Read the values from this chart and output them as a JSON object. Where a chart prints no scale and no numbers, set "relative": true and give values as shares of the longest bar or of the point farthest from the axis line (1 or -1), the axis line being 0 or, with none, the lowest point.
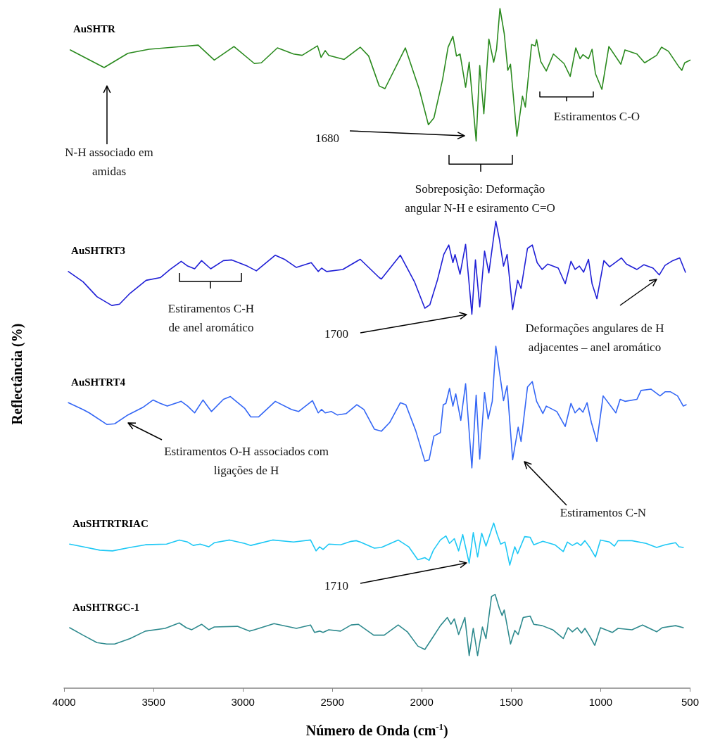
{
  "chart_data": {
    "type": "line",
    "relative": true,
    "xlabel": "Número de Onda (cm$^{-1}$)",
    "ylabel": "Reflectância (%)",
    "xlim": [
      4000,
      500
    ],
    "xticks": [
      4000,
      3500,
      3000,
      2500,
      2000,
      1500,
      1000,
      500
    ],
    "grid": false,
    "tick_labels": "x",
    "line_style": "solid",
    "series": [
      {
        "name": "AuSHTR",
        "color": "#2a8a1e",
        "x": [
          3965,
          3776,
          3643,
          3525,
          3250,
          3160,
          3050,
          2936,
          2897,
          2807,
          2717,
          2669,
          2583,
          2563,
          2540,
          2520,
          2434,
          2344,
          2297,
          2238,
          2206,
          2092,
          2014,
          1963,
          1932,
          1884,
          1853,
          1826,
          1806,
          1786,
          1755,
          1735,
          1696,
          1676,
          1653,
          1625,
          1598,
          1582,
          1563,
          1539,
          1519,
          1504,
          1468,
          1437,
          1421,
          1386,
          1366,
          1358,
          1335,
          1304,
          1264,
          1205,
          1170,
          1139,
          1115,
          1099,
          1068,
          1048,
          1029,
          993,
          954,
          887,
          864,
          797,
          754,
          687,
          660,
          621,
          562,
          546,
          530,
          500
        ],
        "values": [
          0.939,
          0.913,
          0.934,
          0.94,
          0.946,
          0.924,
          0.944,
          0.919,
          0.92,
          0.942,
          0.933,
          0.931,
          0.945,
          0.928,
          0.938,
          0.931,
          0.925,
          0.943,
          0.93,
          0.886,
          0.882,
          0.942,
          0.881,
          0.829,
          0.839,
          0.895,
          0.943,
          0.959,
          0.93,
          0.933,
          0.884,
          0.921,
          0.805,
          0.916,
          0.845,
          0.955,
          0.921,
          0.94,
          1,
          0.963,
          0.909,
          0.918,
          0.812,
          0.871,
          0.855,
          0.947,
          0.945,
          0.954,
          0.922,
          0.908,
          0.933,
          0.919,
          0.9,
          0.942,
          0.926,
          0.932,
          0.926,
          0.94,
          0.904,
          0.881,
          0.944,
          0.918,
          0.939,
          0.933,
          0.92,
          0.931,
          0.943,
          0.937,
          0.914,
          0.909,
          0.92,
          0.924
        ]
      },
      {
        "name": "AuSHTRT3",
        "color": "#1f1fd6",
        "x": [
          3976,
          3894,
          3816,
          3733,
          3690,
          3631,
          3541,
          3462,
          3407,
          3345,
          3309,
          3270,
          3231,
          3180,
          3109,
          3062,
          2976,
          2925,
          2819,
          2768,
          2701,
          2618,
          2579,
          2560,
          2532,
          2442,
          2344,
          2238,
          2226,
          2120,
          2041,
          1983,
          1955,
          1912,
          1877,
          1849,
          1826,
          1814,
          1786,
          1755,
          1720,
          1700,
          1676,
          1649,
          1625,
          1586,
          1566,
          1543,
          1523,
          1492,
          1464,
          1445,
          1409,
          1382,
          1355,
          1327,
          1296,
          1237,
          1198,
          1166,
          1143,
          1119,
          1095,
          1068,
          1048,
          1021,
          982,
          950,
          884,
          856,
          797,
          758,
          707,
          672,
          640,
          597,
          558,
          526
        ],
        "values": [
          0.613,
          0.598,
          0.576,
          0.563,
          0.565,
          0.581,
          0.6,
          0.604,
          0.616,
          0.628,
          0.621,
          0.617,
          0.629,
          0.617,
          0.629,
          0.63,
          0.621,
          0.614,
          0.637,
          0.631,
          0.619,
          0.626,
          0.613,
          0.618,
          0.613,
          0.616,
          0.631,
          0.604,
          0.602,
          0.637,
          0.598,
          0.559,
          0.564,
          0.601,
          0.638,
          0.652,
          0.626,
          0.638,
          0.609,
          0.653,
          0.55,
          0.63,
          0.561,
          0.643,
          0.611,
          0.687,
          0.66,
          0.621,
          0.638,
          0.557,
          0.6,
          0.588,
          0.647,
          0.652,
          0.626,
          0.616,
          0.624,
          0.618,
          0.595,
          0.628,
          0.616,
          0.621,
          0.612,
          0.631,
          0.595,
          0.573,
          0.629,
          0.62,
          0.633,
          0.624,
          0.616,
          0.623,
          0.618,
          0.608,
          0.622,
          0.629,
          0.633,
          0.612
        ]
      },
      {
        "name": "AuSHTRT4",
        "color": "#3366f5",
        "x": [
          3976,
          3894,
          3859,
          3761,
          3717,
          3643,
          3560,
          3502,
          3462,
          3423,
          3345,
          3309,
          3270,
          3223,
          3176,
          3109,
          3070,
          2991,
          2956,
          2913,
          2819,
          2728,
          2689,
          2611,
          2579,
          2560,
          2540,
          2505,
          2473,
          2422,
          2363,
          2324,
          2265,
          2226,
          2179,
          2120,
          2089,
          2034,
          1983,
          1959,
          1932,
          1896,
          1880,
          1865,
          1845,
          1826,
          1810,
          1782,
          1755,
          1720,
          1696,
          1676,
          1649,
          1629,
          1606,
          1586,
          1566,
          1543,
          1523,
          1492,
          1461,
          1445,
          1409,
          1382,
          1358,
          1323,
          1304,
          1245,
          1198,
          1166,
          1143,
          1119,
          1099,
          1076,
          1052,
          1021,
          986,
          915,
          891,
          864,
          797,
          774,
          719,
          668,
          640,
          609,
          570,
          538,
          522
        ],
        "values": [
          0.42,
          0.41,
          0.405,
          0.388,
          0.389,
          0.402,
          0.413,
          0.424,
          0.419,
          0.415,
          0.422,
          0.415,
          0.405,
          0.424,
          0.407,
          0.425,
          0.429,
          0.412,
          0.399,
          0.399,
          0.422,
          0.41,
          0.407,
          0.423,
          0.405,
          0.41,
          0.405,
          0.407,
          0.402,
          0.404,
          0.417,
          0.41,
          0.381,
          0.378,
          0.391,
          0.42,
          0.417,
          0.379,
          0.334,
          0.336,
          0.371,
          0.376,
          0.417,
          0.419,
          0.441,
          0.415,
          0.433,
          0.394,
          0.448,
          0.324,
          0.431,
          0.337,
          0.435,
          0.396,
          0.422,
          0.503,
          0.466,
          0.423,
          0.445,
          0.336,
          0.384,
          0.363,
          0.443,
          0.451,
          0.422,
          0.404,
          0.415,
          0.407,
          0.385,
          0.419,
          0.405,
          0.412,
          0.406,
          0.42,
          0.391,
          0.363,
          0.43,
          0.405,
          0.425,
          0.422,
          0.425,
          0.438,
          0.44,
          0.43,
          0.436,
          0.436,
          0.43,
          0.415,
          0.417
        ]
      },
      {
        "name": "AuSHTRTRIAC",
        "color": "#1ec8f5",
        "x": [
          3969,
          3894,
          3800,
          3729,
          3631,
          3545,
          3427,
          3356,
          3309,
          3278,
          3239,
          3191,
          3160,
          3074,
          2991,
          2956,
          2834,
          2717,
          2622,
          2591,
          2571,
          2552,
          2520,
          2454,
          2395,
          2367,
          2344,
          2265,
          2226,
          2132,
          2073,
          2022,
          1983,
          1959,
          1935,
          1896,
          1865,
          1845,
          1818,
          1794,
          1771,
          1735,
          1712,
          1688,
          1665,
          1641,
          1598,
          1578,
          1559,
          1535,
          1508,
          1480,
          1464,
          1425,
          1394,
          1374,
          1323,
          1256,
          1209,
          1186,
          1158,
          1131,
          1111,
          1088,
          1060,
          1029,
          1001,
          950,
          923,
          903,
          825,
          746,
          687,
          640,
          581,
          562,
          538
        ],
        "values": [
          0.212,
          0.208,
          0.203,
          0.202,
          0.207,
          0.211,
          0.212,
          0.218,
          0.215,
          0.21,
          0.212,
          0.208,
          0.214,
          0.218,
          0.213,
          0.21,
          0.218,
          0.215,
          0.218,
          0.202,
          0.208,
          0.204,
          0.212,
          0.211,
          0.216,
          0.217,
          0.215,
          0.206,
          0.207,
          0.218,
          0.208,
          0.189,
          0.192,
          0.188,
          0.203,
          0.218,
          0.224,
          0.213,
          0.22,
          0.202,
          0.226,
          0.184,
          0.229,
          0.193,
          0.228,
          0.209,
          0.243,
          0.226,
          0.212,
          0.215,
          0.181,
          0.208,
          0.198,
          0.223,
          0.222,
          0.211,
          0.216,
          0.211,
          0.201,
          0.215,
          0.21,
          0.214,
          0.21,
          0.217,
          0.207,
          0.193,
          0.218,
          0.215,
          0.209,
          0.217,
          0.217,
          0.213,
          0.207,
          0.211,
          0.214,
          0.208,
          0.207
        ]
      },
      {
        "name": "AuSHTRGC-1",
        "color": "#2e8a8e",
        "x": [
          3969,
          3894,
          3816,
          3761,
          3717,
          3631,
          3545,
          3435,
          3356,
          3317,
          3286,
          3231,
          3191,
          3160,
          3031,
          2964,
          2936,
          2826,
          2701,
          2622,
          2599,
          2571,
          2552,
          2520,
          2454,
          2395,
          2355,
          2269,
          2210,
          2132,
          2081,
          2022,
          1983,
          1943,
          1896,
          1857,
          1837,
          1818,
          1794,
          1759,
          1735,
          1712,
          1688,
          1661,
          1641,
          1610,
          1590,
          1566,
          1551,
          1539,
          1504,
          1480,
          1461,
          1433,
          1394,
          1374,
          1327,
          1268,
          1209,
          1182,
          1158,
          1131,
          1107,
          1088,
          1060,
          1033,
          1001,
          935,
          903,
          825,
          766,
          687,
          656,
          581,
          538
        ],
        "values": [
          0.089,
          0.078,
          0.067,
          0.065,
          0.065,
          0.073,
          0.084,
          0.088,
          0.096,
          0.089,
          0.086,
          0.094,
          0.086,
          0.09,
          0.091,
          0.084,
          0.086,
          0.095,
          0.088,
          0.093,
          0.082,
          0.084,
          0.082,
          0.086,
          0.084,
          0.093,
          0.094,
          0.078,
          0.078,
          0.093,
          0.083,
          0.062,
          0.057,
          0.073,
          0.092,
          0.104,
          0.094,
          0.102,
          0.079,
          0.104,
          0.048,
          0.088,
          0.048,
          0.09,
          0.073,
          0.135,
          0.138,
          0.117,
          0.107,
          0.115,
          0.065,
          0.085,
          0.079,
          0.104,
          0.106,
          0.094,
          0.092,
          0.086,
          0.073,
          0.089,
          0.083,
          0.089,
          0.081,
          0.088,
          0.076,
          0.063,
          0.089,
          0.082,
          0.088,
          0.086,
          0.093,
          0.083,
          0.089,
          0.092,
          0.089
        ]
      }
    ],
    "annotations": [
      "N-H associado em\namidas",
      "1680",
      "Sobreposição: Deformação\nangular N-H e esiramento C=O",
      "Estiramentos C-O",
      "Estiramentos C-H\nde anel aromático",
      "1700",
      "Deformações angulares de H\nadjacentes – anel aromático",
      "Estiramentos O-H associados com\nligações de H",
      "Estiramentos C-N",
      "1710"
    ]
  }
}
